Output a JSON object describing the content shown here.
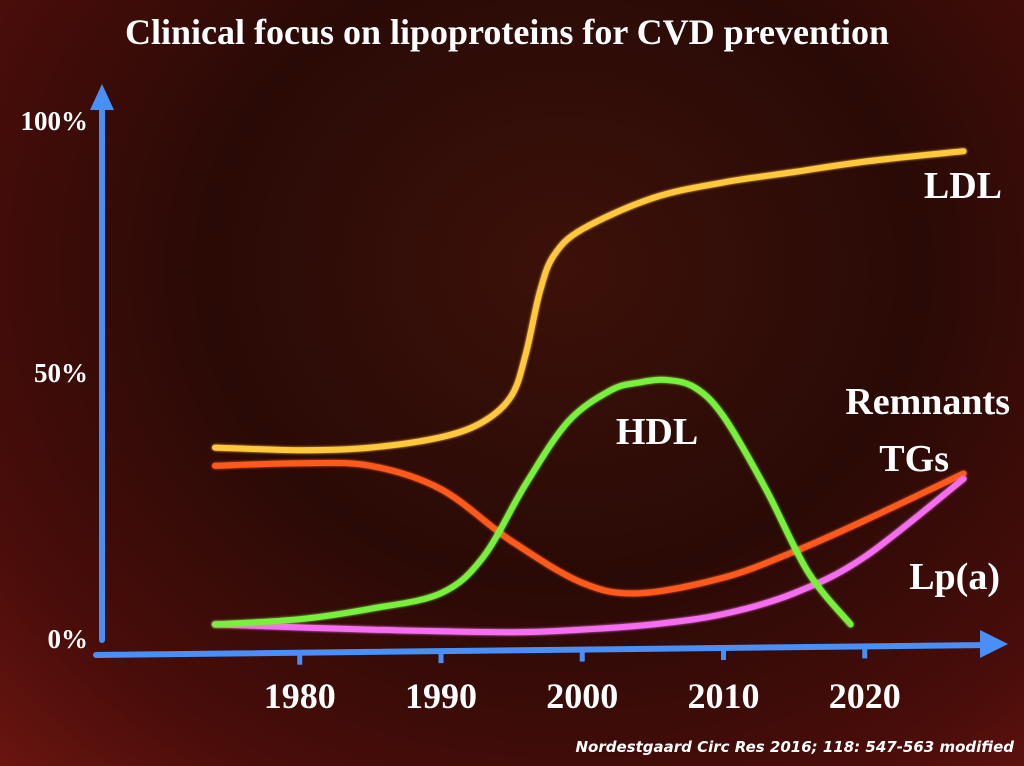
{
  "chart_data": {
    "type": "line",
    "title": "Clinical focus on lipoproteins for CVD prevention",
    "x_ticks": [
      1980,
      1990,
      2000,
      2010,
      2020
    ],
    "y_ticks": [
      "0%",
      "50%",
      "100%"
    ],
    "xlim": [
      1966,
      2030
    ],
    "ylim": [
      0,
      100
    ],
    "series": [
      {
        "name": "LDL",
        "color": "#ffc83c",
        "x": [
          1974,
          1980,
          1985,
          1990,
          1993,
          1995,
          1996,
          1997,
          1998,
          2000,
          2005,
          2010,
          2015,
          2020,
          2027
        ],
        "y": [
          37,
          36.5,
          37,
          39,
          42,
          47,
          55,
          67,
          74,
          79,
          85,
          88,
          90,
          92,
          94
        ]
      },
      {
        "name": "Remnants TGs",
        "color": "#ff5a1e",
        "x": [
          1974,
          1980,
          1985,
          1990,
          1995,
          2000,
          2004,
          2010,
          2015,
          2020,
          2027
        ],
        "y": [
          33.5,
          34,
          33.5,
          29,
          19,
          11,
          9,
          12,
          17,
          23,
          32
        ]
      },
      {
        "name": "HDL",
        "color": "#78f03c",
        "x": [
          1974,
          1980,
          1985,
          1990,
          1993,
          1996,
          1999,
          2002,
          2004,
          2006,
          2008,
          2010,
          2013,
          2016,
          2019
        ],
        "y": [
          3,
          4,
          6,
          9,
          16,
          30,
          42,
          48,
          49.5,
          50,
          48.5,
          43,
          29,
          13,
          3
        ]
      },
      {
        "name": "Lp(a)",
        "color": "#f56ef0",
        "x": [
          1974,
          1985,
          1995,
          2000,
          2005,
          2010,
          2015,
          2020,
          2027
        ],
        "y": [
          3,
          2,
          1.5,
          2,
          3,
          5,
          9,
          16,
          31
        ]
      }
    ],
    "annotations": {
      "ldl": "LDL",
      "hdl": "HDL",
      "remnants": "Remnants",
      "tgs": "TGs",
      "lpa": "Lp(a)"
    }
  },
  "citation": "Nordestgaard  Circ Res 2016; 118: 547-563 modified",
  "axis_color": "#4a8ff5"
}
